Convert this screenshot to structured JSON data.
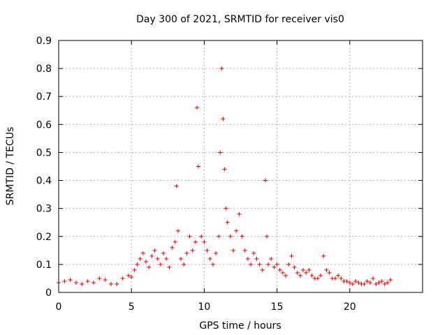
{
  "chart_data": {
    "type": "scatter",
    "title": "Day 300 of 2021, SRMTID for receiver vis0",
    "xlabel": "GPS time / hours",
    "ylabel": "SRMTID / TECUs",
    "xlim": [
      0,
      25.0
    ],
    "ylim": [
      0,
      0.9
    ],
    "x_ticks": [
      0,
      5,
      10,
      15,
      20
    ],
    "x_tick_labels": [
      "0",
      "5",
      "10",
      "15",
      "20"
    ],
    "y_ticks": [
      0,
      0.1,
      0.2,
      0.3,
      0.4,
      0.5,
      0.6,
      0.7,
      0.8,
      0.9
    ],
    "y_tick_labels": [
      "0",
      "0.1",
      "0.2",
      "0.3",
      "0.4",
      "0.5",
      "0.6",
      "0.7",
      "0.8",
      "0.9"
    ],
    "grid": true,
    "marker": "plus",
    "color": "#e00000",
    "series": [
      {
        "name": "SRMTID",
        "x": [
          0.0,
          0.4,
          0.8,
          1.2,
          1.6,
          2.0,
          2.4,
          2.8,
          3.2,
          3.6,
          4.0,
          4.4,
          4.8,
          5.0,
          5.2,
          5.4,
          5.6,
          5.8,
          6.0,
          6.2,
          6.4,
          6.6,
          6.8,
          7.0,
          7.2,
          7.4,
          7.6,
          7.8,
          8.0,
          8.1,
          8.2,
          8.4,
          8.6,
          8.8,
          9.0,
          9.2,
          9.4,
          9.5,
          9.6,
          9.8,
          10.0,
          10.2,
          10.4,
          10.6,
          10.8,
          11.0,
          11.1,
          11.2,
          11.3,
          11.4,
          11.5,
          11.6,
          11.8,
          12.0,
          12.2,
          12.4,
          12.6,
          12.8,
          13.0,
          13.2,
          13.4,
          13.6,
          13.8,
          14.0,
          14.2,
          14.3,
          14.4,
          14.6,
          14.8,
          15.0,
          15.2,
          15.4,
          15.6,
          15.8,
          16.0,
          16.2,
          16.4,
          16.6,
          16.8,
          17.0,
          17.2,
          17.4,
          17.6,
          17.8,
          18.0,
          18.2,
          18.4,
          18.6,
          18.8,
          19.0,
          19.2,
          19.4,
          19.6,
          19.8,
          20.0,
          20.2,
          20.4,
          20.6,
          20.8,
          21.0,
          21.2,
          21.4,
          21.6,
          21.8,
          22.0,
          22.2,
          22.4,
          22.6,
          22.8
        ],
        "y": [
          0.035,
          0.04,
          0.045,
          0.035,
          0.03,
          0.04,
          0.035,
          0.05,
          0.045,
          0.03,
          0.03,
          0.05,
          0.06,
          0.055,
          0.08,
          0.1,
          0.12,
          0.14,
          0.11,
          0.09,
          0.13,
          0.15,
          0.12,
          0.1,
          0.14,
          0.12,
          0.09,
          0.16,
          0.18,
          0.38,
          0.22,
          0.12,
          0.1,
          0.14,
          0.2,
          0.15,
          0.18,
          0.66,
          0.45,
          0.2,
          0.18,
          0.15,
          0.12,
          0.1,
          0.14,
          0.2,
          0.5,
          0.8,
          0.62,
          0.44,
          0.3,
          0.25,
          0.2,
          0.15,
          0.22,
          0.28,
          0.2,
          0.15,
          0.12,
          0.1,
          0.14,
          0.12,
          0.1,
          0.08,
          0.4,
          0.2,
          0.1,
          0.12,
          0.09,
          0.1,
          0.08,
          0.07,
          0.06,
          0.1,
          0.13,
          0.09,
          0.07,
          0.06,
          0.08,
          0.07,
          0.08,
          0.06,
          0.05,
          0.05,
          0.06,
          0.13,
          0.08,
          0.07,
          0.05,
          0.05,
          0.06,
          0.05,
          0.04,
          0.04,
          0.035,
          0.03,
          0.04,
          0.035,
          0.03,
          0.03,
          0.04,
          0.035,
          0.05,
          0.03,
          0.035,
          0.04,
          0.03,
          0.035,
          0.045
        ]
      }
    ]
  }
}
